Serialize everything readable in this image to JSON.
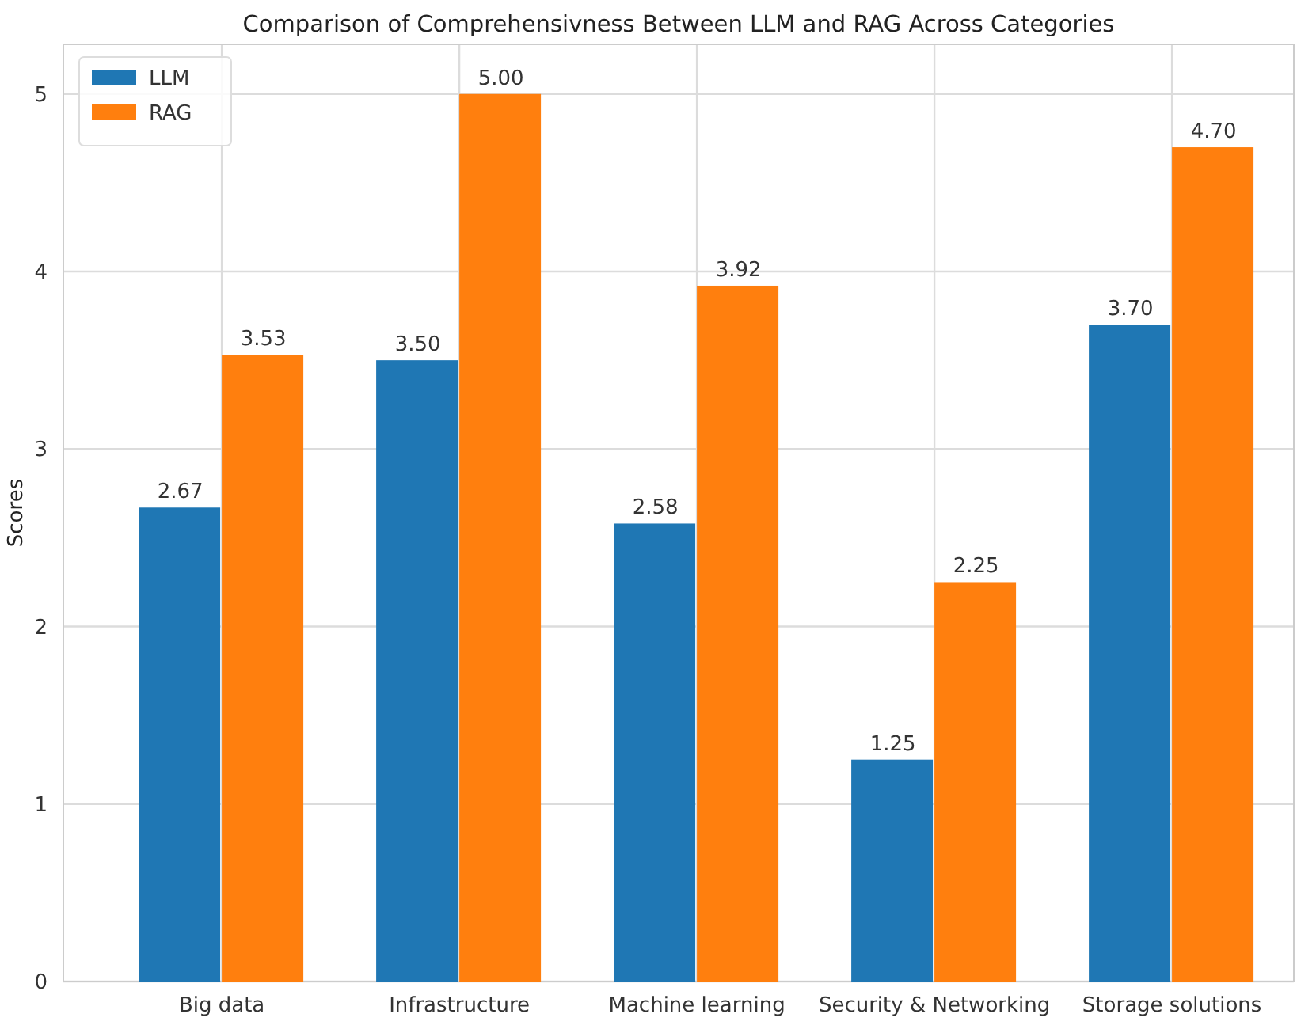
{
  "chart_data": {
    "type": "bar",
    "title": "Comparison of Comprehensivness Between LLM and RAG Across Categories",
    "ylabel": "Scores",
    "categories": [
      "Big data",
      "Infrastructure",
      "Machine learning",
      "Security & Networking",
      "Storage solutions"
    ],
    "series": [
      {
        "name": "LLM",
        "color": "#1f77b4",
        "values": [
          2.67,
          3.5,
          2.58,
          1.25,
          3.7
        ],
        "value_labels": [
          "2.67",
          "3.50",
          "2.58",
          "1.25",
          "3.70"
        ]
      },
      {
        "name": "RAG",
        "color": "#ff7f0e",
        "values": [
          3.53,
          5.0,
          3.92,
          2.25,
          4.7
        ],
        "value_labels": [
          "3.53",
          "5.00",
          "3.92",
          "2.25",
          "4.70"
        ]
      }
    ],
    "ylim": [
      0,
      5.28
    ],
    "yticks": [
      0,
      1,
      2,
      3,
      4,
      5
    ],
    "grid": true,
    "legend": "top left"
  }
}
